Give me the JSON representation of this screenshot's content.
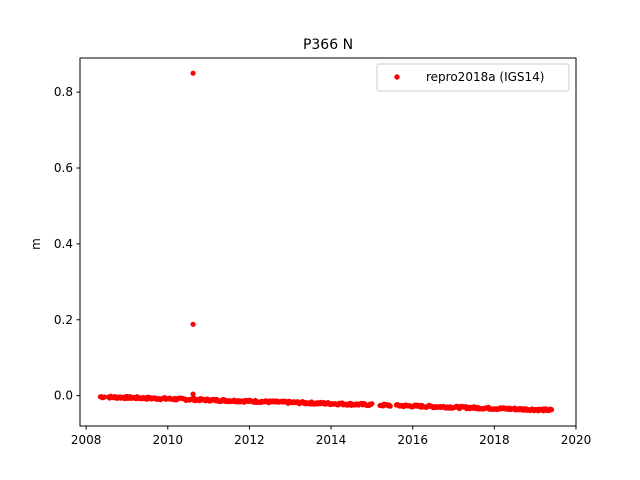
{
  "chart_data": {
    "type": "scatter",
    "title": "P366 N",
    "xlabel": "",
    "ylabel": "m",
    "xlim": [
      2007.85,
      2020.0
    ],
    "ylim": [
      -0.08,
      0.89
    ],
    "xticks": [
      2008,
      2010,
      2012,
      2014,
      2016,
      2018,
      2020
    ],
    "xtick_labels": [
      "2008",
      "2010",
      "2012",
      "2014",
      "2016",
      "2018",
      "2020"
    ],
    "yticks": [
      0.0,
      0.2,
      0.4,
      0.6,
      0.8
    ],
    "ytick_labels": [
      "0.0",
      "0.2",
      "0.4",
      "0.6",
      "0.8"
    ],
    "grid": false,
    "legend_position": "upper right",
    "series": [
      {
        "name": "repro2018a (IGS14)",
        "color": "#ff0000",
        "marker": "circle",
        "trend": {
          "segments": [
            [
              2008.35,
              2008.45
            ],
            [
              2008.55,
              2015.0
            ],
            [
              2015.2,
              2015.45
            ],
            [
              2015.6,
              2019.4
            ]
          ],
          "y_start": -0.003,
          "y_end": -0.038,
          "step_years": 0.025
        },
        "outliers": [
          {
            "x": 2010.62,
            "y": 0.85
          },
          {
            "x": 2010.62,
            "y": 0.188
          },
          {
            "x": 2010.62,
            "y": 0.004
          }
        ]
      }
    ]
  }
}
